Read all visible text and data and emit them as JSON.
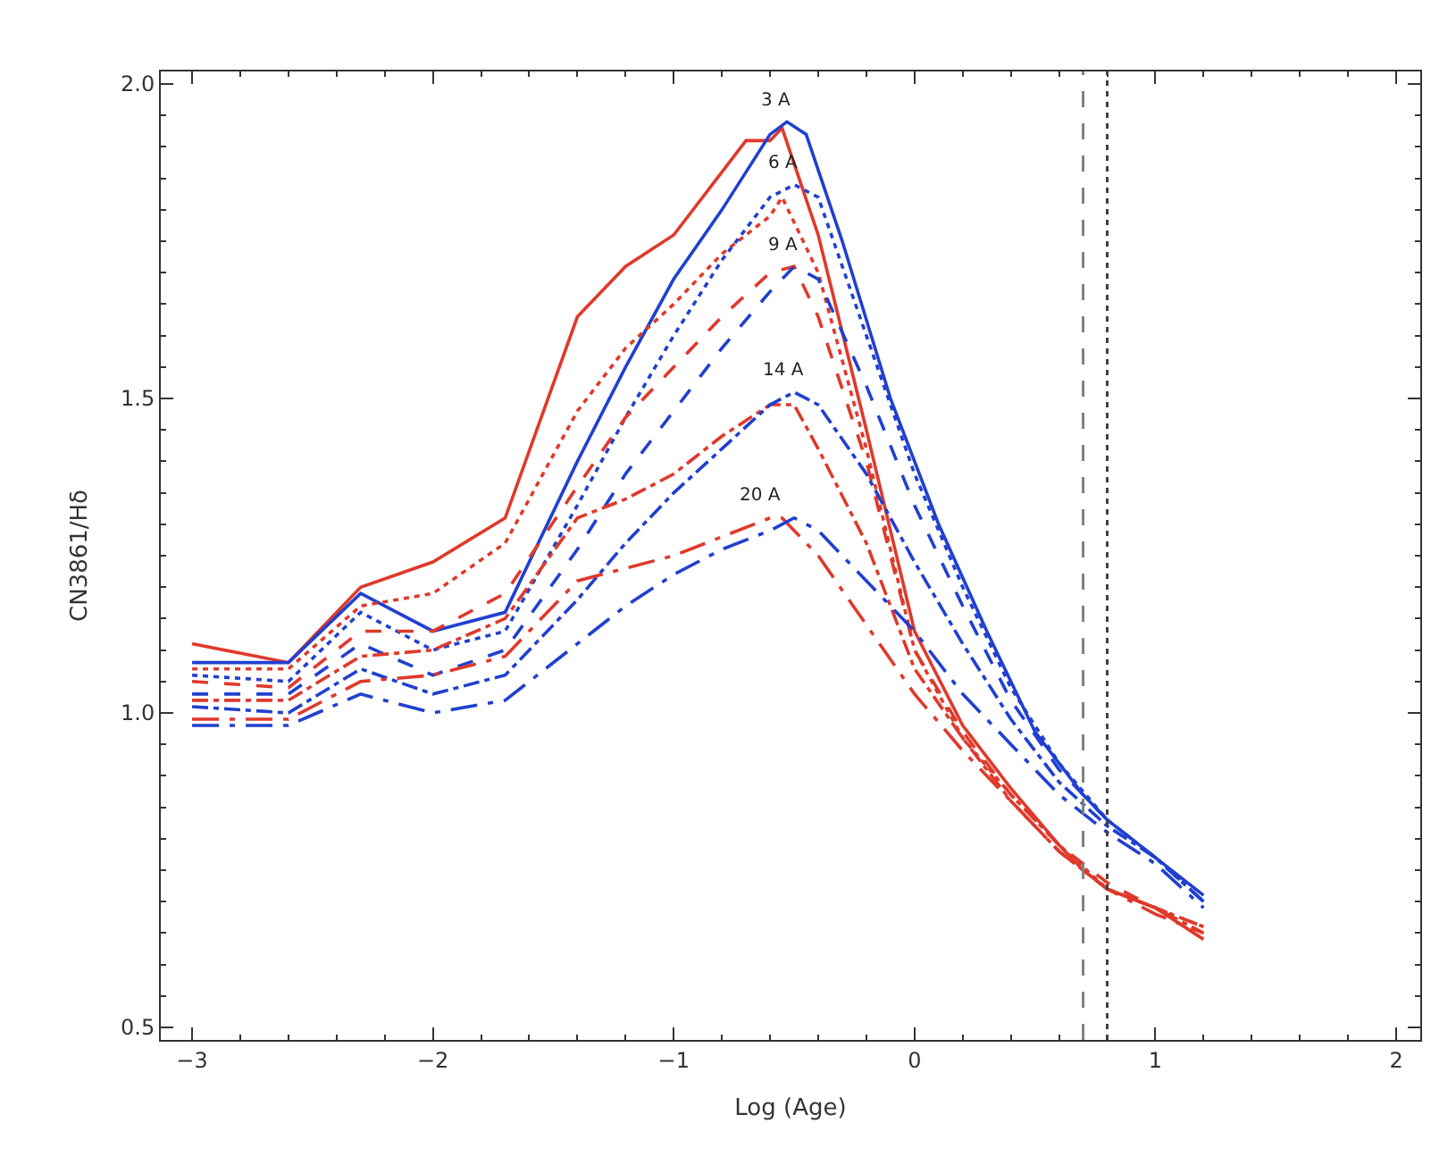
{
  "chart_data": {
    "type": "line",
    "xlabel": "Log (Age)",
    "ylabel": "CN3861/Hδ",
    "xlim": [
      -3.13,
      2.1
    ],
    "xticks": [
      {
        "value": -3,
        "label": "−3"
      },
      {
        "value": -2,
        "label": "−2"
      },
      {
        "value": -1,
        "label": "−1"
      },
      0,
      1,
      2
    ],
    "ylim": [
      0.48,
      2.02
    ],
    "yticks": [
      0.5,
      {
        "value": 1,
        "label": "1.0"
      },
      1.5,
      {
        "value": 2,
        "label": "2.0"
      }
    ],
    "series": [
      {
        "color": "#e0392b",
        "line_style": "solid",
        "x": [
          -3,
          -2.6,
          -2.3,
          -2.0,
          -1.7,
          -1.4,
          -1.2,
          -1.0,
          -0.8,
          -0.7,
          -0.6,
          -0.55,
          -0.4,
          -0.2,
          0,
          0.2,
          0.4,
          0.6,
          0.7,
          0.8,
          1.0,
          1.2
        ],
        "values": [
          1.11,
          1.08,
          1.2,
          1.24,
          1.31,
          1.63,
          1.71,
          1.76,
          1.86,
          1.91,
          1.91,
          1.93,
          1.76,
          1.45,
          1.13,
          0.98,
          0.88,
          0.79,
          0.75,
          0.72,
          0.69,
          0.64
        ]
      },
      {
        "color": "#2040d0",
        "line_style": "solid",
        "x": [
          -3,
          -2.6,
          -2.3,
          -2.0,
          -1.7,
          -1.4,
          -1.2,
          -1.0,
          -0.8,
          -0.6,
          -0.53,
          -0.45,
          -0.3,
          -0.1,
          0.1,
          0.3,
          0.5,
          0.7,
          0.8,
          1.0,
          1.2
        ],
        "values": [
          1.08,
          1.08,
          1.19,
          1.13,
          1.16,
          1.4,
          1.55,
          1.69,
          1.8,
          1.92,
          1.94,
          1.92,
          1.75,
          1.5,
          1.3,
          1.13,
          0.97,
          0.87,
          0.83,
          0.77,
          0.71
        ]
      },
      {
        "color": "#e0392b",
        "line_style": "dotted",
        "x": [
          -3,
          -2.6,
          -2.3,
          -2.0,
          -1.7,
          -1.4,
          -1.2,
          -1.0,
          -0.8,
          -0.6,
          -0.55,
          -0.4,
          -0.2,
          0,
          0.2,
          0.4,
          0.6,
          0.8,
          1.0,
          1.2
        ],
        "values": [
          1.07,
          1.07,
          1.17,
          1.19,
          1.27,
          1.48,
          1.58,
          1.65,
          1.73,
          1.79,
          1.82,
          1.7,
          1.42,
          1.1,
          0.96,
          0.87,
          0.79,
          0.72,
          0.69,
          0.66
        ]
      },
      {
        "color": "#2040d0",
        "line_style": "dotted",
        "x": [
          -3,
          -2.6,
          -2.3,
          -2.0,
          -1.7,
          -1.4,
          -1.2,
          -1.0,
          -0.8,
          -0.6,
          -0.5,
          -0.4,
          -0.2,
          0,
          0.2,
          0.4,
          0.6,
          0.8,
          1.0,
          1.2
        ],
        "values": [
          1.06,
          1.05,
          1.16,
          1.1,
          1.13,
          1.33,
          1.47,
          1.6,
          1.72,
          1.82,
          1.84,
          1.82,
          1.6,
          1.38,
          1.2,
          1.04,
          0.92,
          0.83,
          0.77,
          0.7
        ]
      },
      {
        "color": "#e0392b",
        "line_style": "dashed",
        "x": [
          -3,
          -2.6,
          -2.3,
          -2.0,
          -1.7,
          -1.4,
          -1.2,
          -1.0,
          -0.8,
          -0.6,
          -0.5,
          -0.4,
          -0.2,
          0,
          0.2,
          0.4,
          0.6,
          0.8,
          1.0,
          1.2
        ],
        "values": [
          1.05,
          1.04,
          1.13,
          1.13,
          1.19,
          1.36,
          1.47,
          1.55,
          1.63,
          1.7,
          1.71,
          1.63,
          1.4,
          1.1,
          0.97,
          0.87,
          0.79,
          0.73,
          0.69,
          0.66
        ]
      },
      {
        "color": "#2040d0",
        "line_style": "dashed",
        "x": [
          -3,
          -2.6,
          -2.3,
          -2.0,
          -1.7,
          -1.4,
          -1.2,
          -1.0,
          -0.8,
          -0.6,
          -0.5,
          -0.4,
          -0.2,
          0,
          0.2,
          0.4,
          0.6,
          0.8,
          1.0,
          1.2
        ],
        "values": [
          1.03,
          1.03,
          1.11,
          1.06,
          1.1,
          1.26,
          1.38,
          1.48,
          1.58,
          1.67,
          1.71,
          1.69,
          1.52,
          1.33,
          1.17,
          1.02,
          0.91,
          0.83,
          0.77,
          0.7
        ]
      },
      {
        "color": "#e0392b",
        "line_style": "dashdot",
        "x": [
          -3,
          -2.6,
          -2.3,
          -2.0,
          -1.7,
          -1.4,
          -1.2,
          -1.0,
          -0.8,
          -0.6,
          -0.5,
          -0.4,
          -0.2,
          0,
          0.2,
          0.4,
          0.6,
          0.8,
          1.0,
          1.2
        ],
        "values": [
          1.02,
          1.02,
          1.09,
          1.1,
          1.15,
          1.31,
          1.34,
          1.38,
          1.44,
          1.49,
          1.49,
          1.42,
          1.27,
          1.07,
          0.96,
          0.86,
          0.78,
          0.72,
          0.69,
          0.65
        ]
      },
      {
        "color": "#2040d0",
        "line_style": "dashdot",
        "x": [
          -3,
          -2.6,
          -2.3,
          -2.0,
          -1.7,
          -1.4,
          -1.2,
          -1.0,
          -0.8,
          -0.6,
          -0.5,
          -0.4,
          -0.2,
          0,
          0.2,
          0.4,
          0.6,
          0.8,
          1.0,
          1.2
        ],
        "values": [
          1.01,
          1.0,
          1.07,
          1.03,
          1.06,
          1.18,
          1.27,
          1.35,
          1.42,
          1.49,
          1.51,
          1.49,
          1.38,
          1.24,
          1.11,
          0.99,
          0.89,
          0.82,
          0.77,
          0.7
        ]
      },
      {
        "color": "#e0392b",
        "line_style": "longdashdot",
        "x": [
          -3,
          -2.6,
          -2.3,
          -2.0,
          -1.7,
          -1.4,
          -1.2,
          -1.0,
          -0.8,
          -0.6,
          -0.55,
          -0.4,
          -0.2,
          0,
          0.2,
          0.4,
          0.6,
          0.8,
          1.0,
          1.2
        ],
        "values": [
          0.99,
          0.99,
          1.05,
          1.06,
          1.09,
          1.21,
          1.23,
          1.25,
          1.28,
          1.31,
          1.31,
          1.25,
          1.14,
          1.03,
          0.94,
          0.86,
          0.78,
          0.72,
          0.68,
          0.65
        ]
      },
      {
        "color": "#2040d0",
        "line_style": "longdashdot",
        "x": [
          -3,
          -2.6,
          -2.3,
          -2.0,
          -1.7,
          -1.4,
          -1.2,
          -1.0,
          -0.8,
          -0.6,
          -0.5,
          -0.4,
          -0.2,
          0,
          0.2,
          0.4,
          0.6,
          0.8,
          1.0,
          1.2
        ],
        "values": [
          0.98,
          0.98,
          1.03,
          1.0,
          1.02,
          1.11,
          1.17,
          1.22,
          1.26,
          1.29,
          1.31,
          1.29,
          1.21,
          1.13,
          1.03,
          0.95,
          0.87,
          0.81,
          0.76,
          0.69
        ]
      }
    ],
    "ref_lines": [
      {
        "axis": "x",
        "value": 0.7,
        "color": "#808080",
        "line_style": "dashed"
      },
      {
        "axis": "x",
        "value": 0.8,
        "color": "#404040",
        "line_style": "dotted"
      }
    ],
    "annotations": [
      "3 A",
      "6 A",
      "9 A",
      "14 A",
      "20 A"
    ]
  }
}
